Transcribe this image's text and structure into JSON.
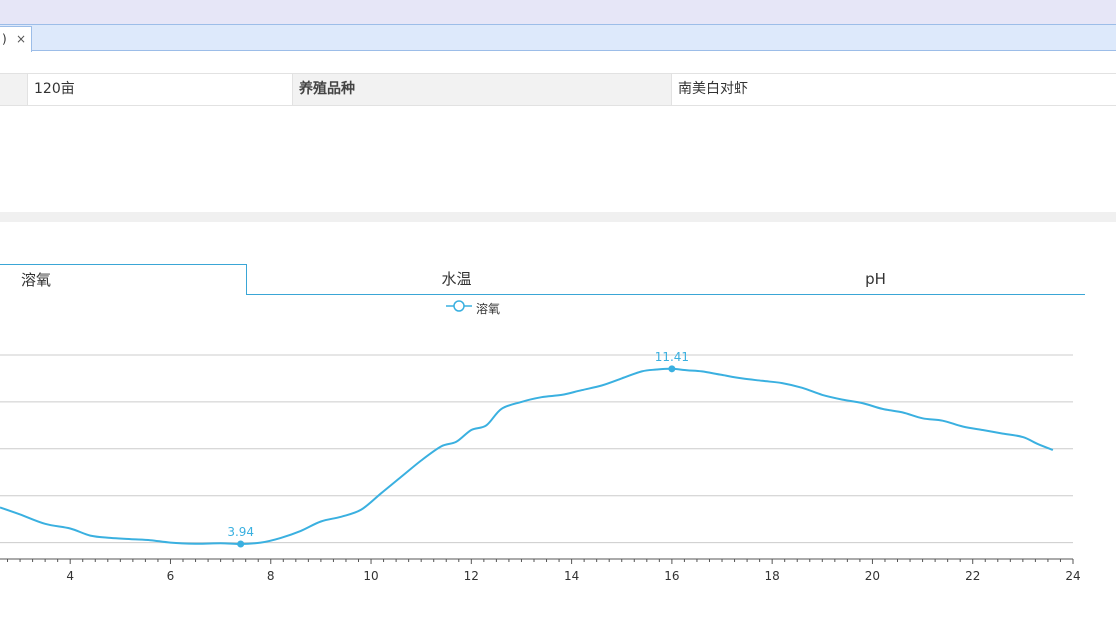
{
  "tabstrip": {
    "tab_label": ")",
    "close_glyph": "×"
  },
  "info_table": {
    "cells": [
      "",
      "120亩",
      "养殖品种",
      "南美白对虾"
    ]
  },
  "chart_tabs": [
    "溶氧",
    "水温",
    "pH"
  ],
  "chart_data": {
    "type": "line",
    "series": [
      {
        "name": "溶氧",
        "color": "#3ab0e0",
        "x": [
          2.6,
          3.0,
          3.5,
          4.0,
          4.4,
          4.8,
          5.2,
          5.6,
          6.0,
          6.5,
          7.0,
          7.4,
          7.8,
          8.2,
          8.6,
          9.0,
          9.4,
          9.8,
          10.2,
          10.6,
          11.0,
          11.4,
          11.7,
          12.0,
          12.3,
          12.6,
          13.0,
          13.4,
          13.8,
          14.2,
          14.6,
          15.0,
          15.4,
          15.7,
          16.0,
          16.3,
          16.6,
          17.0,
          17.4,
          17.8,
          18.2,
          18.6,
          19.0,
          19.4,
          19.8,
          20.2,
          20.6,
          21.0,
          21.4,
          21.8,
          22.2,
          22.6,
          23.0,
          23.3,
          23.6
        ],
        "y": [
          5.5,
          5.2,
          4.8,
          4.6,
          4.3,
          4.2,
          4.15,
          4.1,
          4.0,
          3.95,
          3.97,
          3.94,
          4.0,
          4.2,
          4.5,
          4.9,
          5.1,
          5.4,
          6.1,
          6.8,
          7.5,
          8.1,
          8.3,
          8.8,
          9.0,
          9.7,
          10.0,
          10.2,
          10.3,
          10.5,
          10.7,
          11.0,
          11.3,
          11.38,
          11.41,
          11.35,
          11.3,
          11.15,
          11.0,
          10.9,
          10.8,
          10.6,
          10.3,
          10.1,
          9.95,
          9.7,
          9.55,
          9.3,
          9.2,
          8.95,
          8.8,
          8.65,
          8.5,
          8.2,
          7.95
        ]
      }
    ],
    "markers": [
      {
        "x": 7.4,
        "y": 3.94,
        "label": "3.94"
      },
      {
        "x": 16.0,
        "y": 11.41,
        "label": "11.41"
      }
    ],
    "xlim": [
      2.6,
      24
    ],
    "ylim": [
      3.3,
      12.0
    ],
    "x_ticks": [
      4,
      6,
      8,
      10,
      12,
      14,
      16,
      18,
      20,
      22,
      24
    ],
    "y_gridlines": [
      4,
      6,
      8,
      10,
      12
    ],
    "legend_position": "top-center"
  }
}
